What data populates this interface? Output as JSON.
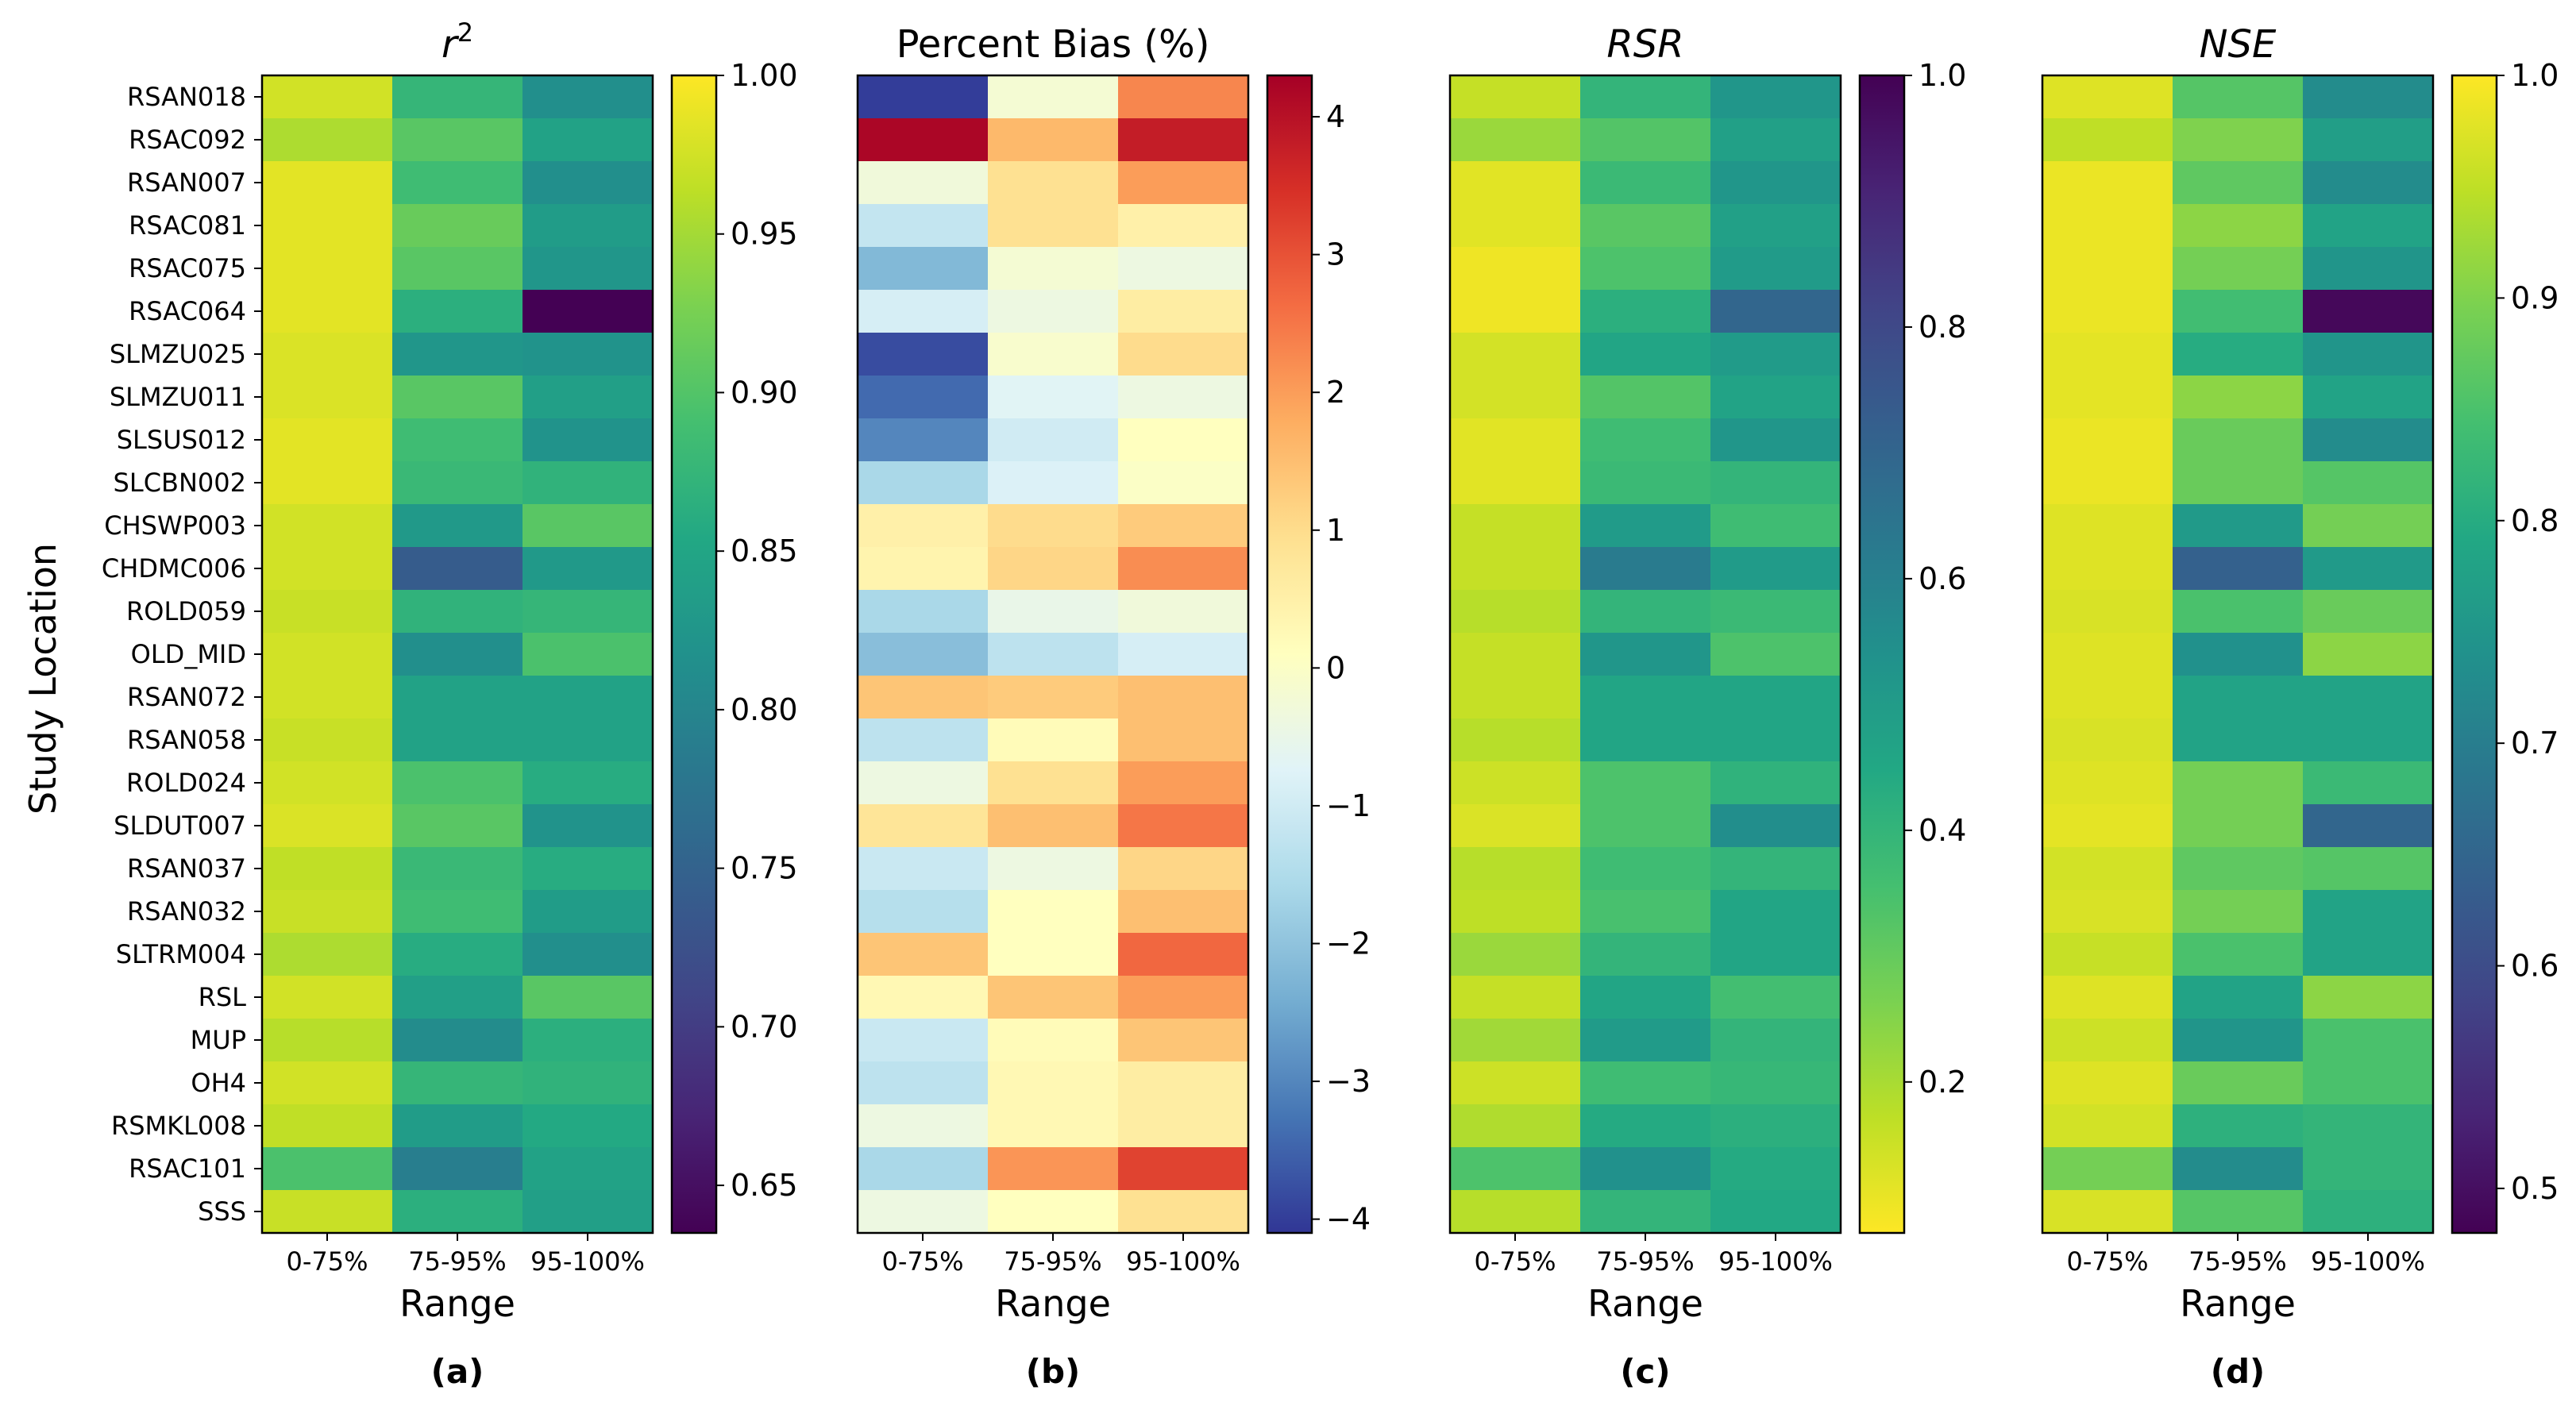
{
  "figure": {
    "ylabel": "Study Location",
    "locations": [
      "RSAN018",
      "RSAC092",
      "RSAN007",
      "RSAC081",
      "RSAC075",
      "RSAC064",
      "SLMZU025",
      "SLMZU011",
      "SLSUS012",
      "SLCBN002",
      "CHSWP003",
      "CHDMC006",
      "ROLD059",
      "OLD_MID",
      "RSAN072",
      "RSAN058",
      "ROLD024",
      "SLDUT007",
      "RSAN037",
      "RSAN032",
      "SLTRM004",
      "RSL",
      "MUP",
      "OH4",
      "RSMKL008",
      "RSAC101",
      "SSS"
    ],
    "ranges": [
      "0-75%",
      "75-95%",
      "95-100%"
    ],
    "xlabel": "Range"
  },
  "chart_data": [
    {
      "type": "heatmap",
      "title": "r²",
      "title_base": "r",
      "title_sup": "2",
      "panel_label": "(a)",
      "xlabel": "Range",
      "ylabel": "Study Location",
      "colormap": "viridis",
      "colormap_reversed": false,
      "vmin": 0.635,
      "vmax": 1.0,
      "colorbar_ticks": [
        0.65,
        0.7,
        0.75,
        0.8,
        0.85,
        0.9,
        0.95,
        1.0
      ],
      "colorbar_ticklabels": [
        "0.65",
        "0.70",
        "0.75",
        "0.80",
        "0.85",
        "0.90",
        "0.95",
        "1.00"
      ],
      "values": [
        [
          0.975,
          0.875,
          0.815
        ],
        [
          0.955,
          0.905,
          0.845
        ],
        [
          0.985,
          0.885,
          0.815
        ],
        [
          0.985,
          0.915,
          0.835
        ],
        [
          0.985,
          0.905,
          0.825
        ],
        [
          0.985,
          0.865,
          0.635
        ],
        [
          0.98,
          0.825,
          0.82
        ],
        [
          0.98,
          0.905,
          0.84
        ],
        [
          0.985,
          0.885,
          0.82
        ],
        [
          0.985,
          0.88,
          0.87
        ],
        [
          0.975,
          0.83,
          0.905
        ],
        [
          0.975,
          0.74,
          0.83
        ],
        [
          0.97,
          0.87,
          0.875
        ],
        [
          0.975,
          0.815,
          0.895
        ],
        [
          0.975,
          0.845,
          0.845
        ],
        [
          0.97,
          0.845,
          0.845
        ],
        [
          0.975,
          0.895,
          0.86
        ],
        [
          0.98,
          0.905,
          0.82
        ],
        [
          0.965,
          0.88,
          0.86
        ],
        [
          0.97,
          0.885,
          0.835
        ],
        [
          0.955,
          0.86,
          0.815
        ],
        [
          0.975,
          0.84,
          0.905
        ],
        [
          0.96,
          0.81,
          0.865
        ],
        [
          0.975,
          0.875,
          0.87
        ],
        [
          0.965,
          0.835,
          0.855
        ],
        [
          0.895,
          0.79,
          0.845
        ],
        [
          0.97,
          0.865,
          0.84
        ]
      ]
    },
    {
      "type": "heatmap",
      "title": "Percent Bias (%)",
      "title_base": "Percent Bias (%)",
      "title_sup": "",
      "panel_label": "(b)",
      "xlabel": "Range",
      "ylabel": "",
      "colormap": "RdYlBu_r",
      "colormap_reversed": false,
      "vmin": -4.1,
      "vmax": 4.3,
      "colorbar_ticks": [
        -4,
        -3,
        -2,
        -1,
        0,
        1,
        2,
        3,
        4
      ],
      "colorbar_ticklabels": [
        "−4",
        "−3",
        "−2",
        "−1",
        "0",
        "1",
        "2",
        "3",
        "4"
      ],
      "values": [
        [
          -4.0,
          -0.2,
          2.3
        ],
        [
          4.2,
          1.6,
          3.8
        ],
        [
          -0.3,
          0.9,
          2.0
        ],
        [
          -1.2,
          0.9,
          0.5
        ],
        [
          -2.2,
          -0.2,
          -0.4
        ],
        [
          -0.9,
          -0.4,
          0.6
        ],
        [
          -3.8,
          -0.1,
          1.0
        ],
        [
          -3.4,
          -0.7,
          -0.4
        ],
        [
          -3.0,
          -1.0,
          0.1
        ],
        [
          -1.6,
          -0.8,
          0.0
        ],
        [
          0.5,
          1.0,
          1.3
        ],
        [
          0.4,
          1.1,
          2.2
        ],
        [
          -1.6,
          -0.5,
          -0.3
        ],
        [
          -2.1,
          -1.3,
          -0.9
        ],
        [
          1.4,
          1.3,
          1.5
        ],
        [
          -1.3,
          0.2,
          1.5
        ],
        [
          -0.4,
          0.9,
          2.0
        ],
        [
          0.8,
          1.5,
          2.5
        ],
        [
          -1.1,
          -0.4,
          1.1
        ],
        [
          -1.4,
          0.1,
          1.5
        ],
        [
          1.4,
          0.1,
          2.7
        ],
        [
          0.3,
          1.4,
          2.0
        ],
        [
          -1.1,
          0.2,
          1.4
        ],
        [
          -1.3,
          0.3,
          0.6
        ],
        [
          -0.4,
          0.3,
          0.6
        ],
        [
          -1.6,
          2.1,
          3.2
        ],
        [
          -0.4,
          0.1,
          0.9
        ]
      ]
    },
    {
      "type": "heatmap",
      "title": "RSR",
      "title_base": "RSR",
      "title_sup": "",
      "panel_label": "(c)",
      "xlabel": "Range",
      "ylabel": "",
      "colormap": "viridis",
      "colormap_reversed": true,
      "vmin": 0.08,
      "vmax": 1.0,
      "colorbar_ticks": [
        0.2,
        0.4,
        0.6,
        0.8,
        1.0
      ],
      "colorbar_ticklabels": [
        "0.2",
        "0.4",
        "0.6",
        "0.8",
        "1.0"
      ],
      "values": [
        [
          0.16,
          0.4,
          0.52
        ],
        [
          0.22,
          0.33,
          0.48
        ],
        [
          0.12,
          0.38,
          0.52
        ],
        [
          0.12,
          0.32,
          0.48
        ],
        [
          0.1,
          0.34,
          0.5
        ],
        [
          0.1,
          0.42,
          0.7
        ],
        [
          0.14,
          0.46,
          0.5
        ],
        [
          0.14,
          0.33,
          0.47
        ],
        [
          0.12,
          0.37,
          0.52
        ],
        [
          0.12,
          0.38,
          0.4
        ],
        [
          0.16,
          0.5,
          0.37
        ],
        [
          0.16,
          0.62,
          0.5
        ],
        [
          0.18,
          0.4,
          0.38
        ],
        [
          0.16,
          0.52,
          0.34
        ],
        [
          0.16,
          0.46,
          0.46
        ],
        [
          0.18,
          0.46,
          0.46
        ],
        [
          0.15,
          0.34,
          0.41
        ],
        [
          0.13,
          0.34,
          0.55
        ],
        [
          0.18,
          0.37,
          0.4
        ],
        [
          0.17,
          0.35,
          0.46
        ],
        [
          0.22,
          0.4,
          0.46
        ],
        [
          0.16,
          0.46,
          0.36
        ],
        [
          0.21,
          0.5,
          0.4
        ],
        [
          0.15,
          0.37,
          0.39
        ],
        [
          0.19,
          0.44,
          0.42
        ],
        [
          0.34,
          0.54,
          0.44
        ],
        [
          0.18,
          0.4,
          0.45
        ]
      ]
    },
    {
      "type": "heatmap",
      "title": "NSE",
      "title_base": "NSE",
      "title_sup": "",
      "panel_label": "(d)",
      "xlabel": "Range",
      "ylabel": "",
      "colormap": "viridis",
      "colormap_reversed": false,
      "vmin": 0.48,
      "vmax": 1.0,
      "colorbar_ticks": [
        0.5,
        0.6,
        0.7,
        0.8,
        0.9,
        1.0
      ],
      "colorbar_ticklabels": [
        "0.5",
        "0.6",
        "0.7",
        "0.8",
        "0.9",
        "1.0"
      ],
      "values": [
        [
          0.975,
          0.86,
          0.73
        ],
        [
          0.95,
          0.9,
          0.77
        ],
        [
          0.985,
          0.87,
          0.73
        ],
        [
          0.985,
          0.91,
          0.78
        ],
        [
          0.985,
          0.89,
          0.75
        ],
        [
          0.985,
          0.84,
          0.49
        ],
        [
          0.98,
          0.8,
          0.75
        ],
        [
          0.98,
          0.91,
          0.78
        ],
        [
          0.985,
          0.88,
          0.73
        ],
        [
          0.985,
          0.88,
          0.86
        ],
        [
          0.975,
          0.76,
          0.89
        ],
        [
          0.975,
          0.64,
          0.76
        ],
        [
          0.97,
          0.85,
          0.88
        ],
        [
          0.975,
          0.74,
          0.91
        ],
        [
          0.975,
          0.78,
          0.78
        ],
        [
          0.97,
          0.78,
          0.78
        ],
        [
          0.975,
          0.89,
          0.83
        ],
        [
          0.98,
          0.89,
          0.65
        ],
        [
          0.965,
          0.87,
          0.86
        ],
        [
          0.97,
          0.89,
          0.78
        ],
        [
          0.955,
          0.85,
          0.78
        ],
        [
          0.975,
          0.78,
          0.91
        ],
        [
          0.96,
          0.75,
          0.85
        ],
        [
          0.975,
          0.88,
          0.85
        ],
        [
          0.965,
          0.81,
          0.82
        ],
        [
          0.89,
          0.73,
          0.82
        ],
        [
          0.97,
          0.86,
          0.81
        ]
      ]
    }
  ]
}
